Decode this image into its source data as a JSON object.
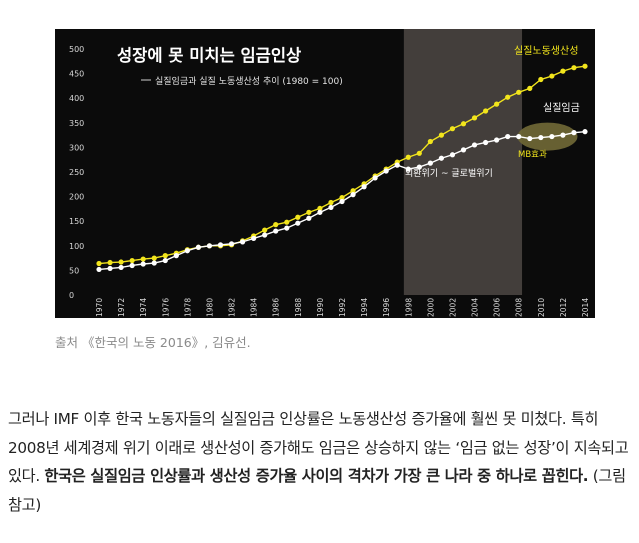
{
  "chart_data": {
    "type": "line",
    "title": "성장에 못 미치는 임금인상",
    "subtitle": "실질임금과 실질 노동생산성 추이 (1980 = 100)",
    "x": [
      1970,
      1971,
      1972,
      1973,
      1974,
      1975,
      1976,
      1977,
      1978,
      1979,
      1980,
      1981,
      1982,
      1983,
      1984,
      1985,
      1986,
      1987,
      1988,
      1989,
      1990,
      1991,
      1992,
      1993,
      1994,
      1995,
      1996,
      1997,
      1998,
      1999,
      2000,
      2001,
      2002,
      2003,
      2004,
      2005,
      2006,
      2007,
      2008,
      2009,
      2010,
      2011,
      2012,
      2013,
      2014
    ],
    "x_ticks": [
      "1970",
      "1972",
      "1974",
      "1976",
      "1978",
      "1980",
      "1982",
      "1984",
      "1986",
      "1988",
      "1990",
      "1992",
      "1994",
      "1996",
      "1998",
      "2000",
      "2002",
      "2004",
      "2006",
      "2008",
      "2010",
      "2012",
      "2014"
    ],
    "ylim": [
      0,
      500
    ],
    "y_ticks": [
      "0",
      "50",
      "100",
      "150",
      "200",
      "250",
      "300",
      "350",
      "400",
      "450",
      "500"
    ],
    "grid": false,
    "series": [
      {
        "name": "실질노동생산성",
        "color": "#f2e51c",
        "values": [
          64,
          66,
          67,
          70,
          73,
          75,
          80,
          85,
          92,
          97,
          100,
          100,
          102,
          110,
          120,
          132,
          143,
          148,
          158,
          168,
          176,
          188,
          198,
          212,
          226,
          242,
          256,
          270,
          280,
          288,
          312,
          325,
          338,
          348,
          360,
          374,
          388,
          402,
          412,
          420,
          438,
          445,
          455,
          462,
          465
        ]
      },
      {
        "name": "실질임금",
        "color": "#ffffff",
        "values": [
          52,
          54,
          56,
          60,
          63,
          65,
          70,
          80,
          90,
          97,
          100,
          102,
          104,
          108,
          115,
          122,
          130,
          136,
          146,
          156,
          168,
          178,
          190,
          204,
          220,
          238,
          252,
          264,
          256,
          260,
          268,
          278,
          285,
          295,
          305,
          310,
          315,
          322,
          322,
          318,
          320,
          322,
          325,
          330,
          332
        ]
      }
    ],
    "annotations": {
      "shade_label": "외환위기 ~ 글로벌위기",
      "mb_label": "MB효과"
    }
  },
  "caption": "출처 《한국의 노동 2016》, 김유선.",
  "paragraph": {
    "normal": "그러나 IMF 이후 한국 노동자들의 실질임금 인상률은 노동생산성 증가율에 훨씬 못 미쳤다. 특히 2008년 세계경제 위기 이래로 생산성이 증가해도 임금은 상승하지 않는 ‘임금 없는 성장’이 지속되고 있다. ",
    "bold": "한국은 실질임금 인상률과 생산성 증가율 사이의 격차가 가장 큰 나라 중 하나로 꼽힌다.",
    "tail": " (그림 참고)"
  }
}
